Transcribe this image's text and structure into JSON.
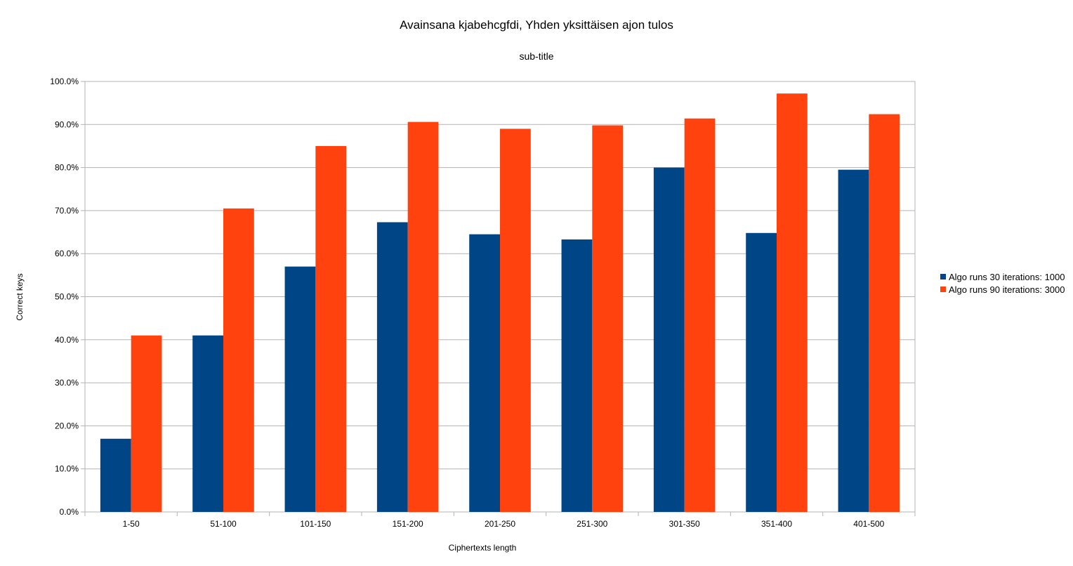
{
  "chart_data": {
    "type": "bar",
    "title": "Avainsana kjabehcgfdi, Yhden yksittäisen ajon tulos",
    "subtitle": "sub-title",
    "xlabel": "Ciphertexts length",
    "ylabel": "Correct keys",
    "categories": [
      "1-50",
      "51-100",
      "101-150",
      "151-200",
      "201-250",
      "251-300",
      "301-350",
      "351-400",
      "401-500"
    ],
    "series": [
      {
        "name": "Algo runs 30 iterations: 1000",
        "color": "#004586",
        "values": [
          17.0,
          41.0,
          57.0,
          67.3,
          64.5,
          63.3,
          80.0,
          64.8,
          79.5
        ]
      },
      {
        "name": "Algo runs 90 iterations: 3000",
        "color": "#ff420e",
        "values": [
          41.0,
          70.5,
          85.0,
          90.6,
          89.0,
          89.8,
          91.4,
          97.2,
          92.4
        ]
      }
    ],
    "ylim": [
      0,
      100
    ],
    "yticks": [
      "0.0%",
      "10.0%",
      "20.0%",
      "30.0%",
      "40.0%",
      "50.0%",
      "60.0%",
      "70.0%",
      "80.0%",
      "90.0%",
      "100.0%"
    ],
    "grid": true,
    "legend_position": "right"
  }
}
